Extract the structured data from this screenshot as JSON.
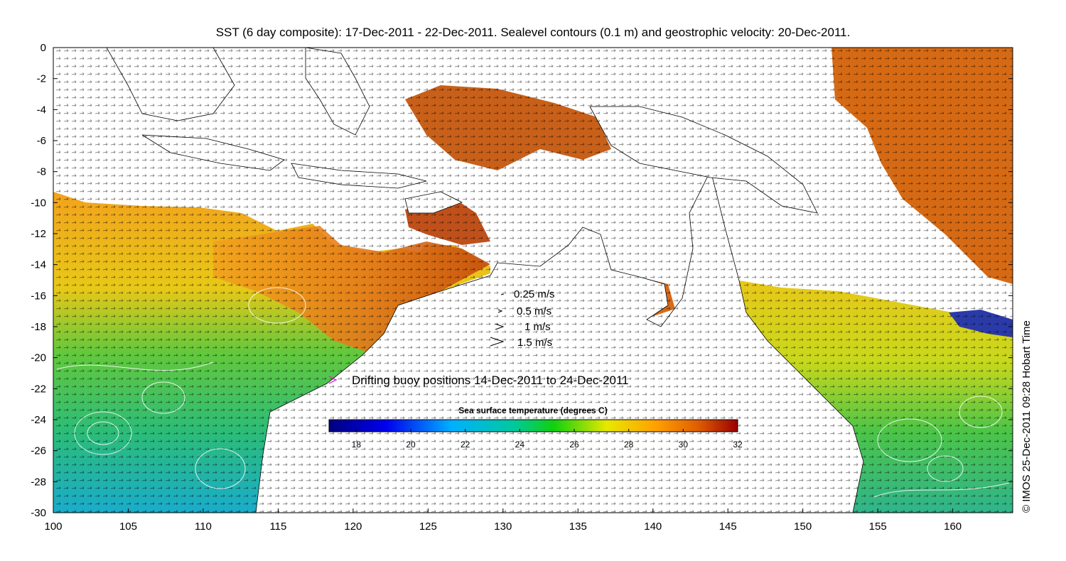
{
  "title": "SST (6 day composite): 17-Dec-2011 - 22-Dec-2011. Sealevel contours (0.1 m) and geostrophic velocity: 20-Dec-2011.",
  "credit": "© IMOS 25-Dec-2011 09:28 Hobart Time",
  "axes": {
    "x_ticks": [
      "100",
      "105",
      "110",
      "115",
      "120",
      "125",
      "130",
      "135",
      "140",
      "145",
      "150",
      "155",
      "160"
    ],
    "y_ticks": [
      "0",
      "-2",
      "-4",
      "-6",
      "-8",
      "-10",
      "-12",
      "-14",
      "-16",
      "-18",
      "-20",
      "-22",
      "-24",
      "-26",
      "-28",
      "-30"
    ],
    "lon_range": [
      100,
      164
    ],
    "lat_range": [
      -30,
      0
    ]
  },
  "velocity_legend": [
    "0.25 m/s",
    "0.5 m/s",
    "1 m/s",
    "1.5 m/s"
  ],
  "buoy_legend": "Drifting buoy positions 14-Dec-2011 to 24-Dec-2011",
  "colorbar": {
    "title": "Sea surface temperature (degrees C)",
    "ticks": [
      "18",
      "20",
      "22",
      "24",
      "26",
      "28",
      "30",
      "32"
    ],
    "range": [
      17,
      32
    ]
  },
  "colors": {
    "land": "#ffffff",
    "coast": "#000000",
    "contours": "#ffffff",
    "buoy": "#d030d0"
  }
}
